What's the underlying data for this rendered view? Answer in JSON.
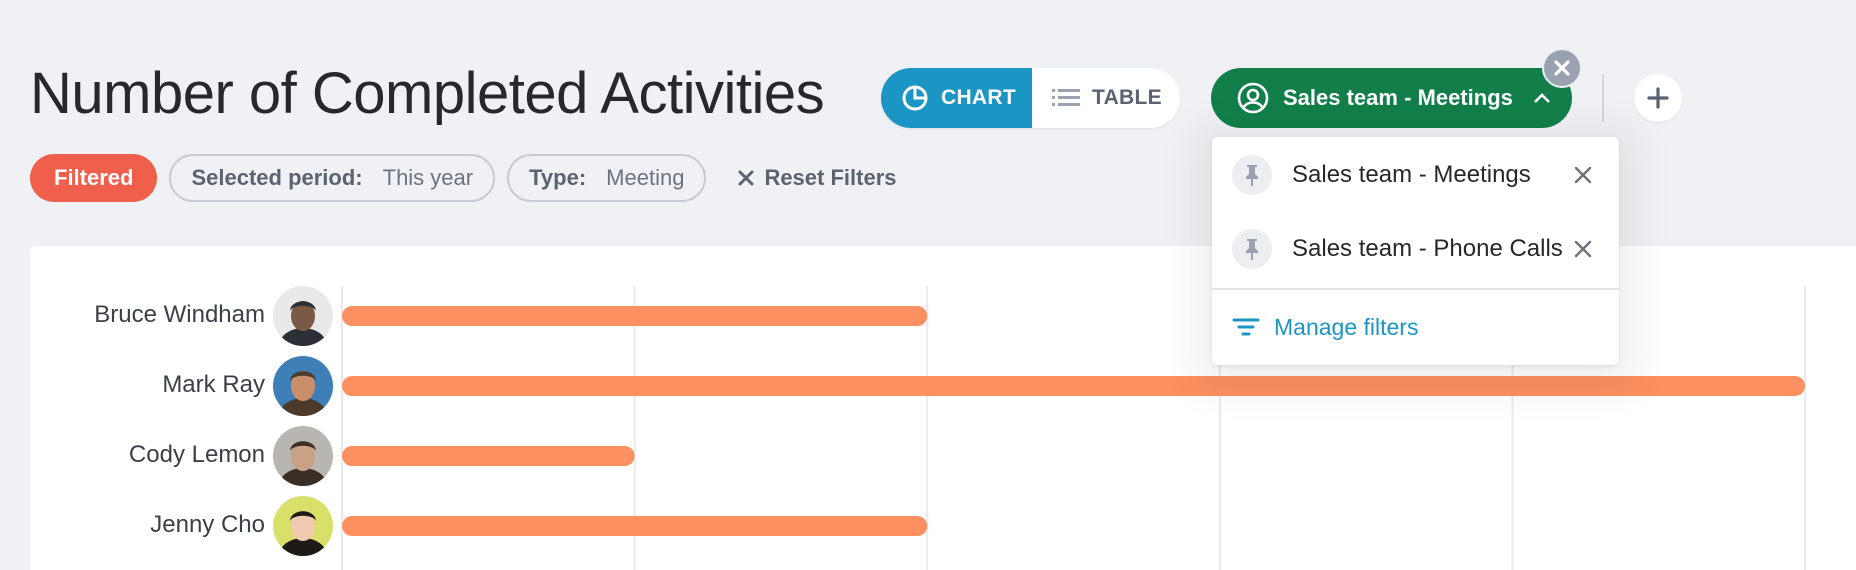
{
  "header": {
    "title": "Number of Completed Activities"
  },
  "view_toggle": {
    "chart_label": "CHART",
    "table_label": "TABLE",
    "active": "CHART"
  },
  "filter_pill": {
    "label": "Sales team - Meetings",
    "color": "#127f4a"
  },
  "chips": {
    "status": "Filtered",
    "period_key": "Selected period:",
    "period_value": "This year",
    "type_key": "Type:",
    "type_value": "Meeting",
    "reset_label": "Reset Filters"
  },
  "dropdown": {
    "items": [
      {
        "label": "Sales team - Meetings"
      },
      {
        "label": "Sales team - Phone Calls"
      }
    ],
    "manage_label": "Manage filters"
  },
  "chart_data": {
    "type": "bar",
    "orientation": "horizontal",
    "categories": [
      "Bruce Windham",
      "Mark Ray",
      "Cody Lemon",
      "Jenny Cho"
    ],
    "values": [
      2,
      5,
      1,
      2
    ],
    "xlim": [
      0,
      5
    ],
    "grid": true,
    "bar_color": "#fd9060",
    "title": "",
    "xlabel": "",
    "ylabel": ""
  }
}
